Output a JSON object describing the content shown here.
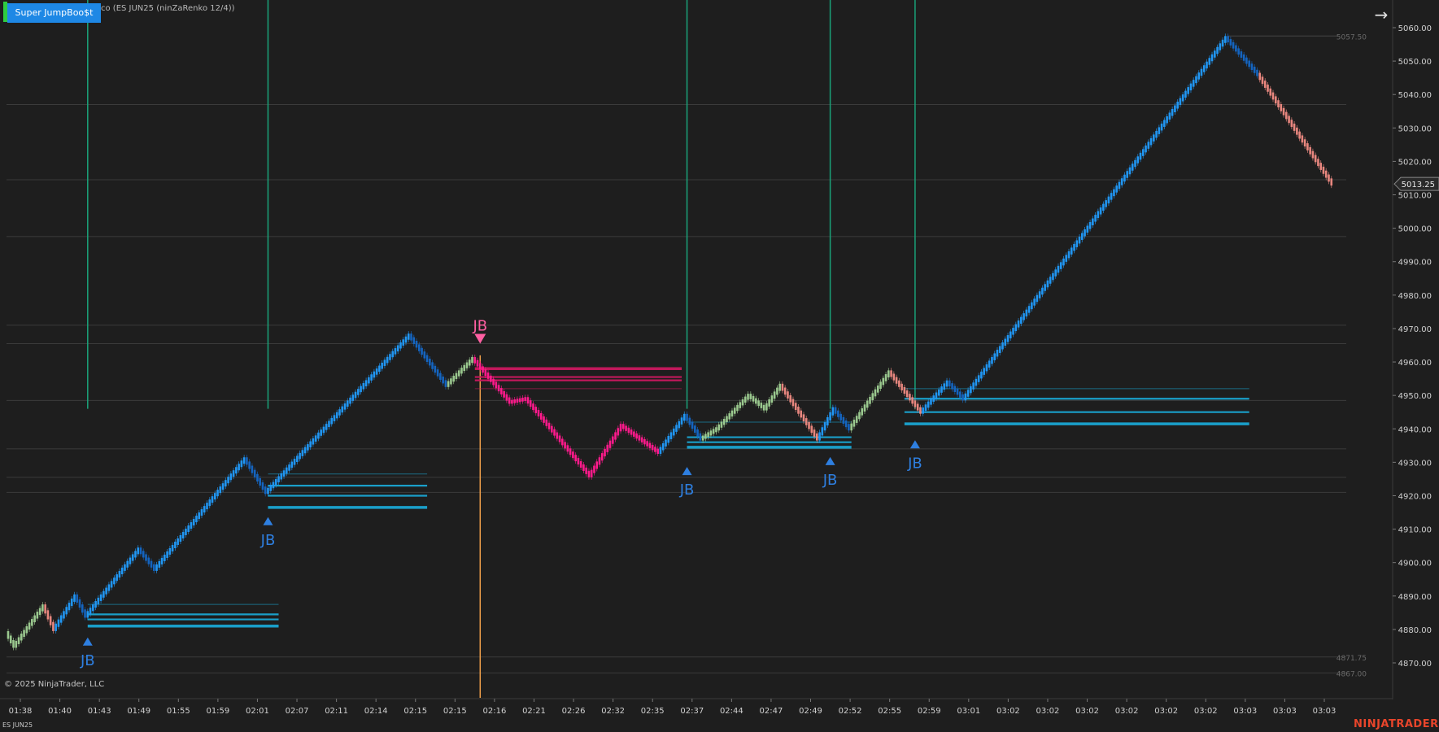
{
  "toolbar": {
    "indicator_button_label": "Super JumpBoo$t",
    "instrument_title": "co (ES JUN25 (ninZaRenko 12/4))",
    "collapse_arrow_icon": "arrow-right-icon"
  },
  "footer": {
    "copyright": "© 2025 NinjaTrader, LLC",
    "instrument": "ES JUN25",
    "brand": "NINJATRADER"
  },
  "colors": {
    "background": "#1e1e1e",
    "bull_bar": "#2196f3",
    "bull_bar_dark": "#1565c0",
    "bear_bar": "#e8877f",
    "bear_bar_strong": "#ff1a8c",
    "neutral_bar": "#9bc98f",
    "signal_blue": "#2e7fe0",
    "signal_pink": "#ff5fa2",
    "vertical_line": "#1aa37a",
    "vertical_line_bear": "#f0a04b",
    "support_line": "#1a9fc9",
    "resistance_line": "#c2185b"
  },
  "chart_data": {
    "type": "renko",
    "instrument": "ES JUN25",
    "bar_type": "ninZaRenko 12/4",
    "y_axis": {
      "ticks": [
        "5060.00",
        "5050.00",
        "5040.00",
        "5030.00",
        "5020.00",
        "5010.00",
        "5000.00",
        "4990.00",
        "4980.00",
        "4970.00",
        "4960.00",
        "4950.00",
        "4940.00",
        "4930.00",
        "4920.00",
        "4910.00",
        "4900.00",
        "4890.00",
        "4880.00",
        "4870.00"
      ],
      "range": [
        4864,
        5068
      ]
    },
    "x_axis": {
      "ticks": [
        "01:38",
        "01:40",
        "01:43",
        "01:49",
        "01:55",
        "01:59",
        "02:01",
        "02:07",
        "02:11",
        "02:14",
        "02:15",
        "02:15",
        "02:16",
        "02:21",
        "02:26",
        "02:32",
        "02:35",
        "02:37",
        "02:44",
        "02:47",
        "02:49",
        "02:52",
        "02:55",
        "02:59",
        "03:01",
        "03:02",
        "03:02",
        "03:02",
        "03:02",
        "03:02",
        "03:02",
        "03:03",
        "03:03",
        "03:03"
      ]
    },
    "current_price": "5013.25",
    "price_labels": [
      {
        "label": "5057.50",
        "value": 5057.5
      },
      {
        "label": "4871.75",
        "value": 4871.75
      },
      {
        "label": "4867.00",
        "value": 4867.0
      }
    ],
    "price_path": [
      {
        "bar": 0,
        "price": 4879,
        "trend": "bear"
      },
      {
        "bar": 3,
        "price": 4875,
        "trend": "neutral"
      },
      {
        "bar": 14,
        "price": 4887,
        "trend": "neutral"
      },
      {
        "bar": 18,
        "price": 4880,
        "trend": "bear"
      },
      {
        "bar": 26,
        "price": 4890,
        "trend": "bull"
      },
      {
        "bar": 30,
        "price": 4884,
        "trend": "bull_dark"
      },
      {
        "bar": 50,
        "price": 4904,
        "trend": "bull"
      },
      {
        "bar": 56,
        "price": 4898,
        "trend": "bull_dark"
      },
      {
        "bar": 90,
        "price": 4931,
        "trend": "bull"
      },
      {
        "bar": 98,
        "price": 4921,
        "trend": "bull_dark"
      },
      {
        "bar": 152,
        "price": 4968,
        "trend": "bull"
      },
      {
        "bar": 166,
        "price": 4953,
        "trend": "bull_dark"
      },
      {
        "bar": 176,
        "price": 4961,
        "trend": "neutral"
      },
      {
        "bar": 190,
        "price": 4948,
        "trend": "bear_strong"
      },
      {
        "bar": 196,
        "price": 4949,
        "trend": "bear_strong"
      },
      {
        "bar": 220,
        "price": 4926,
        "trend": "bear_strong"
      },
      {
        "bar": 232,
        "price": 4941,
        "trend": "bear_strong"
      },
      {
        "bar": 246,
        "price": 4933,
        "trend": "bear_strong"
      },
      {
        "bar": 256,
        "price": 4944,
        "trend": "bull"
      },
      {
        "bar": 262,
        "price": 4937,
        "trend": "bull_dark"
      },
      {
        "bar": 268,
        "price": 4940,
        "trend": "neutral"
      },
      {
        "bar": 280,
        "price": 4950,
        "trend": "neutral"
      },
      {
        "bar": 286,
        "price": 4946,
        "trend": "neutral"
      },
      {
        "bar": 292,
        "price": 4953,
        "trend": "neutral"
      },
      {
        "bar": 306,
        "price": 4937,
        "trend": "bear"
      },
      {
        "bar": 312,
        "price": 4946,
        "trend": "bull"
      },
      {
        "bar": 318,
        "price": 4940,
        "trend": "bull_dark"
      },
      {
        "bar": 333,
        "price": 4957,
        "trend": "neutral"
      },
      {
        "bar": 345,
        "price": 4945,
        "trend": "bear"
      },
      {
        "bar": 355,
        "price": 4954,
        "trend": "bull"
      },
      {
        "bar": 361,
        "price": 4949,
        "trend": "bull_dark"
      },
      {
        "bar": 460,
        "price": 5057,
        "trend": "bull"
      },
      {
        "bar": 472,
        "price": 5046,
        "trend": "bull_dark"
      },
      {
        "bar": 500,
        "price": 5013.25,
        "trend": "bear"
      }
    ],
    "signals": [
      {
        "label": "JB",
        "direction": "buy",
        "bar": 30,
        "price": 4881
      },
      {
        "label": "JB",
        "direction": "buy",
        "bar": 98,
        "price": 4917
      },
      {
        "label": "JB",
        "direction": "sell",
        "bar": 178,
        "price": 4965
      },
      {
        "label": "JB",
        "direction": "buy",
        "bar": 256,
        "price": 4932
      },
      {
        "label": "JB",
        "direction": "buy",
        "bar": 310,
        "price": 4935
      },
      {
        "label": "JB",
        "direction": "buy",
        "bar": 342,
        "price": 4940
      }
    ],
    "vertical_lines": [
      {
        "bar": 30,
        "kind": "bull"
      },
      {
        "bar": 98,
        "kind": "bull"
      },
      {
        "bar": 178,
        "kind": "bear"
      },
      {
        "bar": 256,
        "kind": "bull"
      },
      {
        "bar": 310,
        "kind": "bull"
      },
      {
        "bar": 342,
        "kind": "bull"
      }
    ],
    "zones": [
      {
        "kind": "support",
        "start_bar": 30,
        "end_bar": 102,
        "levels": [
          4881,
          4883,
          4884.5,
          4887.5
        ]
      },
      {
        "kind": "support",
        "start_bar": 98,
        "end_bar": 158,
        "levels": [
          4916.5,
          4920,
          4923,
          4926.5
        ]
      },
      {
        "kind": "resistance",
        "start_bar": 176,
        "end_bar": 254,
        "levels": [
          4958,
          4955.5,
          4954.5,
          4952
        ]
      },
      {
        "kind": "support",
        "start_bar": 256,
        "end_bar": 318,
        "levels": [
          4934.5,
          4936,
          4937.5,
          4942
        ]
      },
      {
        "kind": "support",
        "start_bar": 338,
        "end_bar": 468,
        "levels": [
          4941.5,
          4945,
          4949,
          4952
        ]
      }
    ],
    "gray_levels": [
      5037,
      5014.5,
      4997.5,
      4971,
      4965.5,
      4948.5,
      4934,
      4925.5,
      4921,
      4871.75,
      4867
    ]
  }
}
